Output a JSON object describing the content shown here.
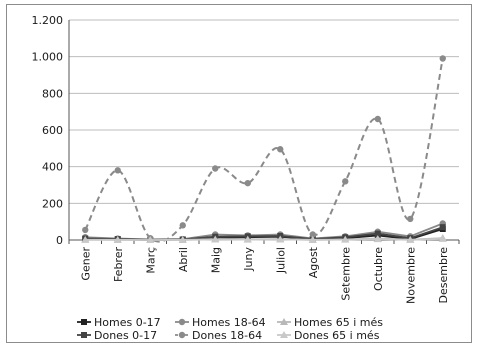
{
  "chart_data": {
    "type": "line",
    "categories": [
      "Gener",
      "Febrer",
      "Març",
      "Abril",
      "Maig",
      "Juny",
      "Juliol",
      "Agost",
      "Setembre",
      "Octubre",
      "Novembre",
      "Desembre"
    ],
    "ylim": [
      0,
      1200
    ],
    "yticks": [
      0,
      200,
      400,
      600,
      800,
      1000,
      1200
    ],
    "ytick_labels": [
      "0",
      "200",
      "400",
      "600",
      "800",
      "1.000",
      "1.200"
    ],
    "grid": "horizontal",
    "legend_position": "bottom",
    "series": [
      {
        "name": "Homes 0-17",
        "color": "#222222",
        "dash": "none",
        "marker": "square",
        "smooth": false,
        "values": [
          5,
          3,
          0,
          2,
          12,
          15,
          18,
          3,
          10,
          25,
          5,
          60
        ]
      },
      {
        "name": "Homes 18-64",
        "color": "#8a8a8a",
        "dash": "none",
        "marker": "circle",
        "smooth": false,
        "values": [
          15,
          8,
          3,
          5,
          30,
          25,
          30,
          8,
          20,
          45,
          20,
          90
        ]
      },
      {
        "name": "Homes 65 i més",
        "color": "#b8b8b8",
        "dash": "none",
        "marker": "triangle",
        "smooth": false,
        "values": [
          2,
          1,
          0,
          1,
          5,
          4,
          5,
          1,
          3,
          8,
          2,
          10
        ]
      },
      {
        "name": "Dones 0-17",
        "color": "#444444",
        "dash": "none",
        "marker": "square",
        "smooth": false,
        "values": [
          8,
          5,
          1,
          3,
          18,
          20,
          22,
          5,
          15,
          35,
          10,
          70
        ]
      },
      {
        "name": "Dones 18-64",
        "color": "#8a8a8a",
        "dash": "6,4",
        "marker": "circle",
        "smooth": true,
        "values": [
          55,
          380,
          10,
          80,
          390,
          310,
          495,
          30,
          320,
          660,
          115,
          990
        ]
      },
      {
        "name": "Dones 65 i més",
        "color": "#c8c8c8",
        "dash": "none",
        "marker": "triangle",
        "smooth": false,
        "values": [
          1,
          1,
          0,
          1,
          3,
          2,
          3,
          1,
          2,
          5,
          1,
          6
        ]
      }
    ]
  }
}
